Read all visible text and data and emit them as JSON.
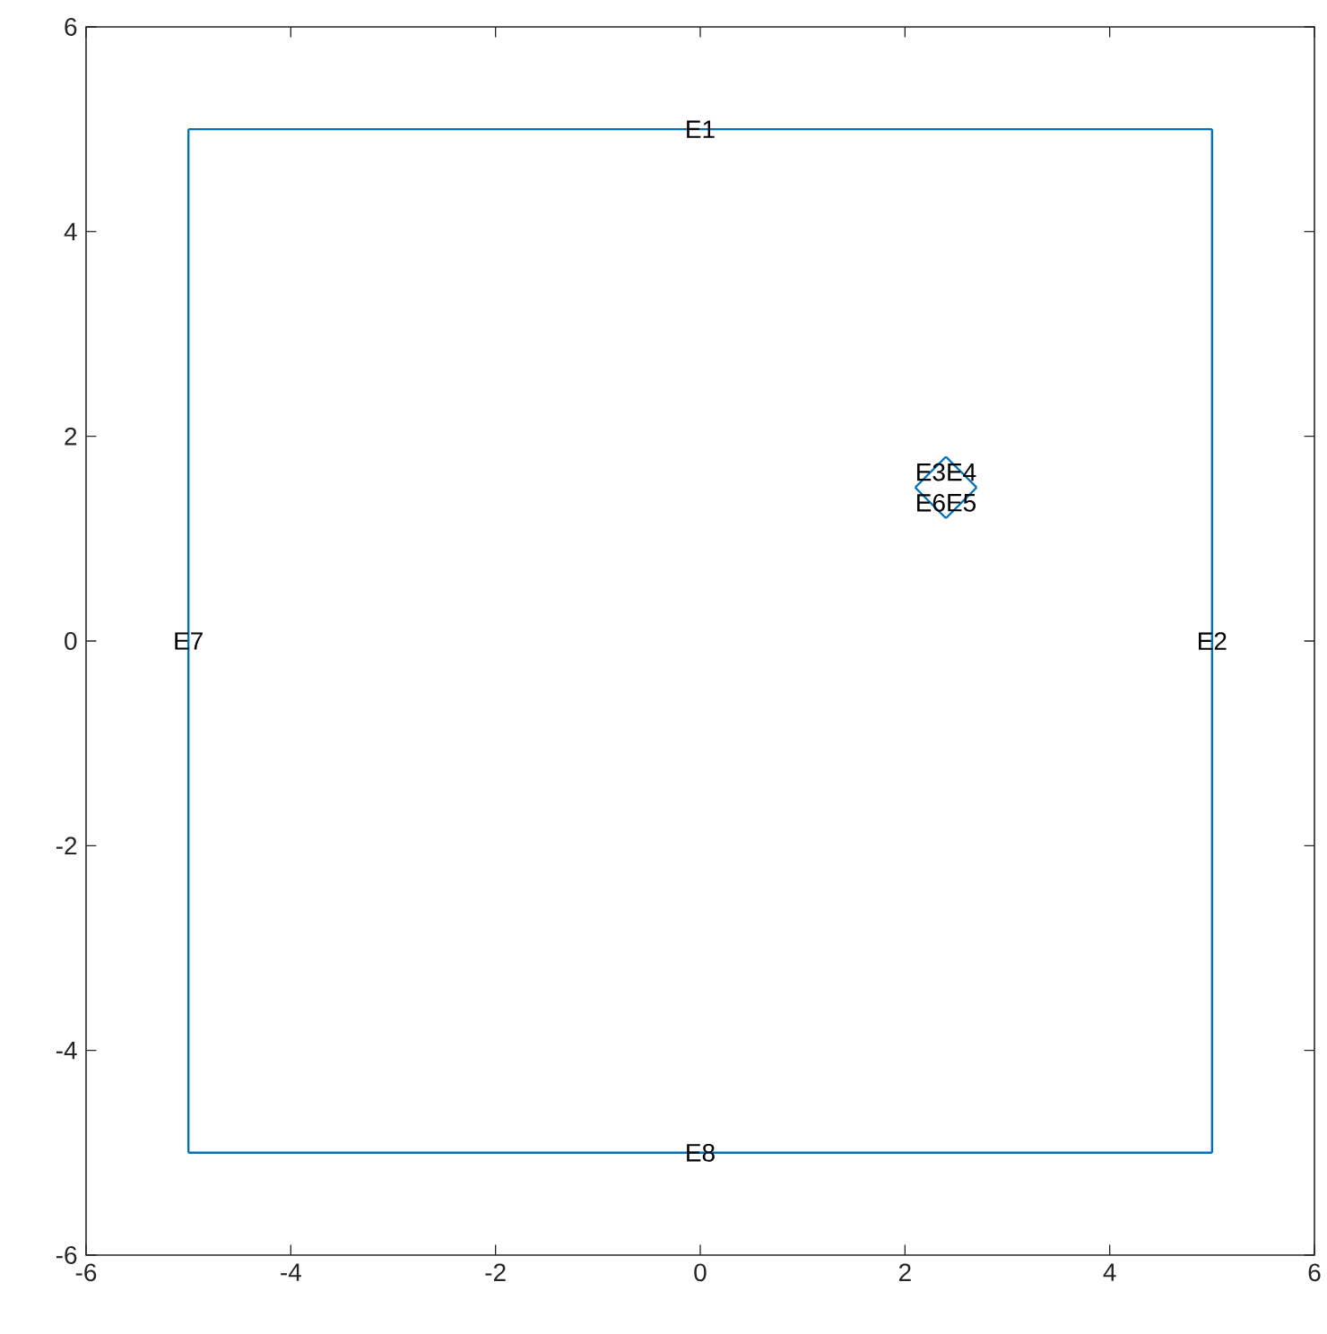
{
  "chart_data": {
    "type": "line",
    "xlim": [
      -6,
      6
    ],
    "ylim": [
      -6,
      6
    ],
    "xticks": [
      -6,
      -4,
      -2,
      0,
      2,
      4,
      6
    ],
    "yticks": [
      -6,
      -4,
      -2,
      0,
      2,
      4,
      6
    ],
    "grid": false,
    "legend": false,
    "marker": "none",
    "line_style": "solid",
    "series": [
      {
        "name": "E1",
        "color": "#0072bd",
        "x": [
          -5,
          5
        ],
        "values": [
          5,
          5
        ]
      },
      {
        "name": "E2",
        "color": "#0072bd",
        "x": [
          5,
          5
        ],
        "values": [
          5,
          -5
        ]
      },
      {
        "name": "E3",
        "color": "#0072bd",
        "x": [
          2.1,
          2.4
        ],
        "values": [
          1.5,
          1.8
        ]
      },
      {
        "name": "E4",
        "color": "#0072bd",
        "x": [
          2.4,
          2.7
        ],
        "values": [
          1.8,
          1.5
        ]
      },
      {
        "name": "E5",
        "color": "#0072bd",
        "x": [
          2.7,
          2.4
        ],
        "values": [
          1.5,
          1.2
        ]
      },
      {
        "name": "E6",
        "color": "#0072bd",
        "x": [
          2.4,
          2.1
        ],
        "values": [
          1.2,
          1.5
        ]
      },
      {
        "name": "E7",
        "color": "#0072bd",
        "x": [
          -5,
          -5
        ],
        "values": [
          -5,
          5
        ]
      },
      {
        "name": "E8",
        "color": "#0072bd",
        "x": [
          5,
          -5
        ],
        "values": [
          -5,
          -5
        ]
      }
    ]
  }
}
